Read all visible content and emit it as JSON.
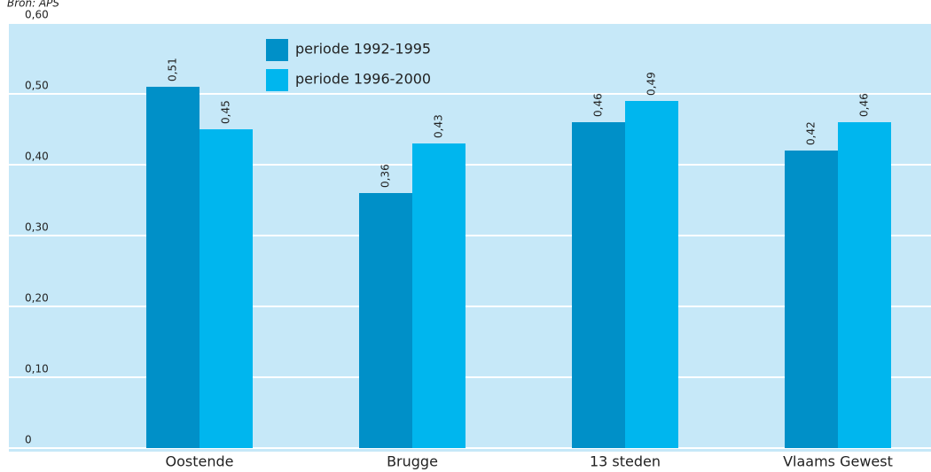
{
  "chart_data": {
    "type": "bar",
    "source": "Bron: APS",
    "categories": [
      "Oostende",
      "Brugge",
      "13 steden",
      "Vlaams Gewest"
    ],
    "series": [
      {
        "name": "periode 1992-1995",
        "color": "#0090c8",
        "values": [
          0.51,
          0.36,
          0.46,
          0.42
        ],
        "value_labels": [
          "0,51",
          "0,36",
          "0,46",
          "0,42"
        ]
      },
      {
        "name": "periode 1996-2000",
        "color": "#00b6ee",
        "values": [
          0.45,
          0.43,
          0.49,
          0.46
        ],
        "value_labels": [
          "0,45",
          "0,43",
          "0,49",
          "0,46"
        ]
      }
    ],
    "ylim": [
      0,
      0.6
    ],
    "yticks": [
      0,
      {
        "value": 0.1,
        "label": "0,10"
      },
      {
        "value": 0.2,
        "label": "0,20"
      },
      {
        "value": 0.3,
        "label": "0,30"
      },
      {
        "value": 0.4,
        "label": "0,40"
      },
      {
        "value": 0.5,
        "label": "0,50"
      },
      {
        "value": 0.6,
        "label": "0,60"
      }
    ],
    "grid": true,
    "legend": "top-left"
  }
}
